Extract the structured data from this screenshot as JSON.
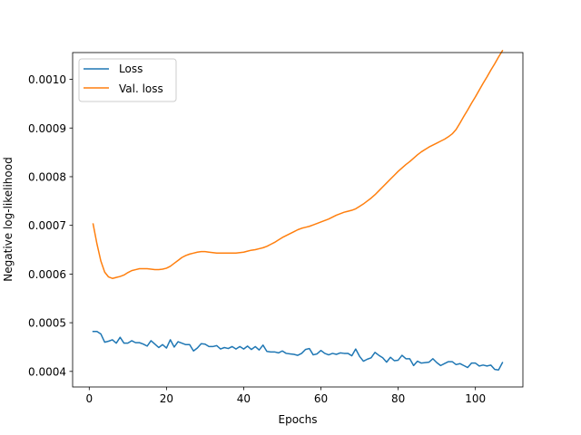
{
  "chart_data": {
    "type": "line",
    "title": "",
    "xlabel": "Epochs",
    "ylabel": "Negative log-likelihood",
    "xlim": [
      -4.3,
      112.3
    ],
    "ylim": [
      0.000368,
      0.001055
    ],
    "xticks": [
      0,
      20,
      40,
      60,
      80,
      100
    ],
    "yticks": [
      0.0004,
      0.0005,
      0.0006,
      0.0007,
      0.0008,
      0.0009,
      0.001
    ],
    "ytick_labels": [
      "0.0004",
      "0.0005",
      "0.0006",
      "0.0007",
      "0.0008",
      "0.0009",
      "0.0010"
    ],
    "grid": false,
    "legend": "top-left",
    "series": [
      {
        "name": "Loss",
        "color": "#1f77b4",
        "x": [
          1,
          2,
          3,
          4,
          5,
          6,
          7,
          8,
          9,
          10,
          11,
          12,
          13,
          14,
          15,
          16,
          17,
          18,
          19,
          20,
          21,
          22,
          23,
          24,
          25,
          26,
          27,
          28,
          29,
          30,
          31,
          32,
          33,
          34,
          35,
          36,
          37,
          38,
          39,
          40,
          41,
          42,
          43,
          44,
          45,
          46,
          47,
          48,
          49,
          50,
          51,
          52,
          53,
          54,
          55,
          56,
          57,
          58,
          59,
          60,
          61,
          62,
          63,
          64,
          65,
          66,
          67,
          68,
          69,
          70,
          71,
          72,
          73,
          74,
          75,
          76,
          77,
          78,
          79,
          80,
          81,
          82,
          83,
          84,
          85,
          86,
          87,
          88,
          89,
          90,
          91,
          92,
          93,
          94,
          95,
          96,
          97,
          98,
          99,
          100,
          101,
          102,
          103,
          104,
          105,
          106,
          107
        ],
        "y": [
          0.000482,
          0.000482,
          0.000477,
          0.00046,
          0.000462,
          0.000465,
          0.000458,
          0.00047,
          0.000458,
          0.000458,
          0.000463,
          0.000459,
          0.000459,
          0.000456,
          0.000452,
          0.000463,
          0.000456,
          0.000449,
          0.000455,
          0.000448,
          0.000465,
          0.00045,
          0.000461,
          0.000458,
          0.000455,
          0.000455,
          0.000442,
          0.000448,
          0.000457,
          0.000456,
          0.000451,
          0.000451,
          0.000453,
          0.000446,
          0.000449,
          0.000447,
          0.000451,
          0.000446,
          0.000451,
          0.000446,
          0.000452,
          0.000445,
          0.000451,
          0.000444,
          0.000454,
          0.000441,
          0.00044,
          0.00044,
          0.000438,
          0.000442,
          0.000437,
          0.000436,
          0.000435,
          0.000433,
          0.000437,
          0.000445,
          0.000447,
          0.000434,
          0.000436,
          0.000443,
          0.000437,
          0.000434,
          0.000437,
          0.000435,
          0.000438,
          0.000437,
          0.000437,
          0.000432,
          0.000446,
          0.000431,
          0.000421,
          0.000425,
          0.000428,
          0.000439,
          0.000433,
          0.000428,
          0.000419,
          0.000429,
          0.000422,
          0.000423,
          0.000433,
          0.000426,
          0.000426,
          0.000412,
          0.000421,
          0.000417,
          0.000418,
          0.000419,
          0.000426,
          0.000418,
          0.000412,
          0.000416,
          0.00042,
          0.00042,
          0.000414,
          0.000416,
          0.000412,
          0.000408,
          0.000417,
          0.000417,
          0.000411,
          0.000413,
          0.000411,
          0.000413,
          0.000404,
          0.000403,
          0.000418
        ]
      },
      {
        "name": "Val. loss",
        "color": "#ff7f0e",
        "x": [
          1,
          2,
          3,
          4,
          5,
          6,
          7,
          8,
          9,
          10,
          11,
          12,
          13,
          14,
          15,
          16,
          17,
          18,
          19,
          20,
          21,
          22,
          23,
          24,
          25,
          26,
          27,
          28,
          29,
          30,
          31,
          32,
          33,
          34,
          35,
          36,
          37,
          38,
          39,
          40,
          41,
          42,
          43,
          44,
          45,
          46,
          47,
          48,
          49,
          50,
          51,
          52,
          53,
          54,
          55,
          56,
          57,
          58,
          59,
          60,
          61,
          62,
          63,
          64,
          65,
          66,
          67,
          68,
          69,
          70,
          71,
          72,
          73,
          74,
          75,
          76,
          77,
          78,
          79,
          80,
          81,
          82,
          83,
          84,
          85,
          86,
          87,
          88,
          89,
          90,
          91,
          92,
          93,
          94,
          95,
          96,
          97,
          98,
          99,
          100,
          101,
          102,
          103,
          104,
          105,
          106,
          107
        ],
        "y": [
          0.000703,
          0.000662,
          0.000627,
          0.000604,
          0.000594,
          0.000591,
          0.000593,
          0.000595,
          0.000598,
          0.000603,
          0.000607,
          0.000609,
          0.000611,
          0.000611,
          0.000611,
          0.00061,
          0.000609,
          0.000609,
          0.00061,
          0.000612,
          0.000616,
          0.000622,
          0.000628,
          0.000634,
          0.000638,
          0.000641,
          0.000643,
          0.000645,
          0.000646,
          0.000646,
          0.000645,
          0.000644,
          0.000643,
          0.000643,
          0.000643,
          0.000643,
          0.000643,
          0.000643,
          0.000644,
          0.000645,
          0.000647,
          0.000649,
          0.00065,
          0.000652,
          0.000654,
          0.000657,
          0.000661,
          0.000665,
          0.00067,
          0.000675,
          0.000679,
          0.000683,
          0.000687,
          0.000691,
          0.000694,
          0.000696,
          0.000698,
          0.000701,
          0.000704,
          0.000707,
          0.00071,
          0.000713,
          0.000717,
          0.000721,
          0.000724,
          0.000727,
          0.000729,
          0.000731,
          0.000734,
          0.000739,
          0.000744,
          0.00075,
          0.000756,
          0.000763,
          0.000771,
          0.000779,
          0.000787,
          0.000795,
          0.000803,
          0.000811,
          0.000818,
          0.000825,
          0.000831,
          0.000838,
          0.000845,
          0.000851,
          0.000856,
          0.000861,
          0.000865,
          0.000869,
          0.000873,
          0.000877,
          0.000882,
          0.000888,
          0.000897,
          0.00091,
          0.000924,
          0.000937,
          0.000951,
          0.000964,
          0.000978,
          0.000992,
          0.001005,
          0.001019,
          0.001032,
          0.001046,
          0.001059
        ]
      }
    ]
  }
}
